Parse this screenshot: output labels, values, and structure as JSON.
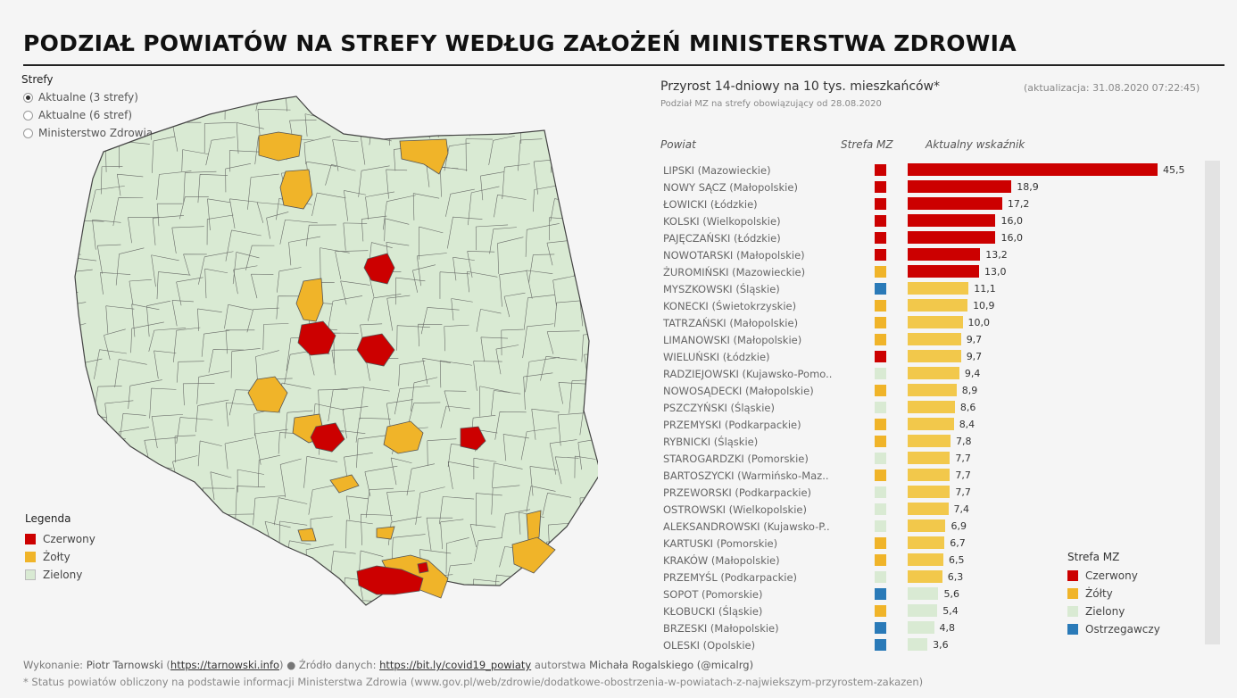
{
  "title": "PODZIAŁ POWIATÓW NA STREFY WEDŁUG ZAŁOŻEŃ MINISTERSTWA ZDROWIA",
  "filter": {
    "label": "Strefy",
    "options": [
      "Aktualne (3 strefy)",
      "Aktualne (6 stref)",
      "Ministerstwo Zdrowia"
    ],
    "selected_index": 0
  },
  "map_legend": {
    "title": "Legenda",
    "items": [
      {
        "label": "Czerwony",
        "color": "#cc0000"
      },
      {
        "label": "Żołty",
        "color": "#f0b429"
      },
      {
        "label": "Zielony",
        "color": "#d9ead3"
      }
    ]
  },
  "colors": {
    "red": "#cc0000",
    "yellow": "#f0b429",
    "yellow_bar": "#f2c84b",
    "green": "#d9ead3",
    "blue": "#2a7ab8",
    "map_border": "#555555"
  },
  "chart_header": {
    "title": "Przyrost 14-dniowy na 10 tys. mieszkańców*",
    "update": "(aktualizacja: 31.08.2020 07:22:45)",
    "subtitle": "Podział MZ na strefy obowiązujący od 28.08.2020",
    "col_powiat": "Powiat",
    "col_strefa": "Strefa MZ",
    "col_wskaznik": "Aktualny wskaźnik"
  },
  "chart_data": {
    "type": "bar",
    "orientation": "horizontal",
    "x_max": 45.5,
    "categories": [
      "LIPSKI (Mazowieckie)",
      "NOWY SĄCZ (Małopolskie)",
      "ŁOWICKI (Łódzkie)",
      "KOLSKI (Wielkopolskie)",
      "PAJĘCZAŃSKI (Łódzkie)",
      "NOWOTARSKI (Małopolskie)",
      "ŻUROMIŃSKI (Mazowieckie)",
      "MYSZKOWSKI (Śląskie)",
      "KONECKI (Świetokrzyskie)",
      "TATRZAŃSKI (Małopolskie)",
      "LIMANOWSKI (Małopolskie)",
      "WIELUŃSKI (Łódzkie)",
      "RADZIEJOWSKI (Kujawsko-Pomo..",
      "NOWOSĄDECKI (Małopolskie)",
      "PSZCZYŃSKI (Śląskie)",
      "PRZEMYSKI (Podkarpackie)",
      "RYBNICKI (Śląskie)",
      "STAROGARDZKI (Pomorskie)",
      "BARTOSZYCKI (Warmińsko-Maz..",
      "PRZEWORSKI (Podkarpackie)",
      "OSTROWSKI (Wielkopolskie)",
      "ALEKSANDROWSKI (Kujawsko-P..",
      "KARTUSKI (Pomorskie)",
      "KRAKÓW (Małopolskie)",
      "PRZEMYŚL (Podkarpackie)",
      "SOPOT (Pomorskie)",
      "KŁOBUCKI (Śląskie)",
      "BRZESKI (Małopolskie)",
      "OLESKI (Opolskie)"
    ],
    "values": [
      45.5,
      18.9,
      17.2,
      16.0,
      16.0,
      13.2,
      13.0,
      11.1,
      10.9,
      10.0,
      9.7,
      9.7,
      9.4,
      8.9,
      8.6,
      8.4,
      7.8,
      7.7,
      7.7,
      7.7,
      7.4,
      6.9,
      6.7,
      6.5,
      6.3,
      5.6,
      5.4,
      4.8,
      3.6
    ],
    "value_labels": [
      "45,5",
      "18,9",
      "17,2",
      "16,0",
      "16,0",
      "13,2",
      "13,0",
      "11,1",
      "10,9",
      "10,0",
      "9,7",
      "9,7",
      "9,4",
      "8,9",
      "8,6",
      "8,4",
      "7,8",
      "7,7",
      "7,7",
      "7,7",
      "7,4",
      "6,9",
      "6,7",
      "6,5",
      "6,3",
      "5,6",
      "5,4",
      "4,8",
      "3,6"
    ],
    "bar_zone": [
      "red",
      "red",
      "red",
      "red",
      "red",
      "red",
      "red",
      "yellow",
      "yellow",
      "yellow",
      "yellow",
      "yellow",
      "yellow",
      "yellow",
      "yellow",
      "yellow",
      "yellow",
      "yellow",
      "yellow",
      "yellow",
      "yellow",
      "yellow",
      "yellow",
      "yellow",
      "yellow",
      "green",
      "green",
      "green",
      "green"
    ],
    "mz_zone": [
      "red",
      "red",
      "red",
      "red",
      "red",
      "red",
      "yellow",
      "blue",
      "yellow",
      "yellow",
      "yellow",
      "red",
      "green",
      "yellow",
      "green",
      "yellow",
      "yellow",
      "green",
      "yellow",
      "green",
      "green",
      "green",
      "yellow",
      "yellow",
      "green",
      "blue",
      "yellow",
      "blue",
      "blue"
    ]
  },
  "zone_legend": {
    "title": "Strefa MZ",
    "items": [
      {
        "label": "Czerwony",
        "color": "#cc0000"
      },
      {
        "label": "Żółty",
        "color": "#f0b429"
      },
      {
        "label": "Zielony",
        "color": "#d9ead3"
      },
      {
        "label": "Ostrzegawczy",
        "color": "#2a7ab8"
      }
    ]
  },
  "footer": {
    "made_by_prefix": "Wykonanie:",
    "author": "Piotr Tarnowski",
    "author_link": "https://tarnowski.info",
    "source_prefix": "● Źródło danych:",
    "source_link": "https://bit.ly/covid19_powiaty",
    "source_author_prefix": "autorstwa",
    "source_author": "Michała Rogalskiego (@micalrg)",
    "note": "* Status powiatów obliczony na podstawie informacji Ministerstwa Zdrowia (www.gov.pl/web/zdrowie/dodatkowe-obostrzenia-w-powiatach-z-najwiekszym-przyrostem-zakazen)"
  }
}
